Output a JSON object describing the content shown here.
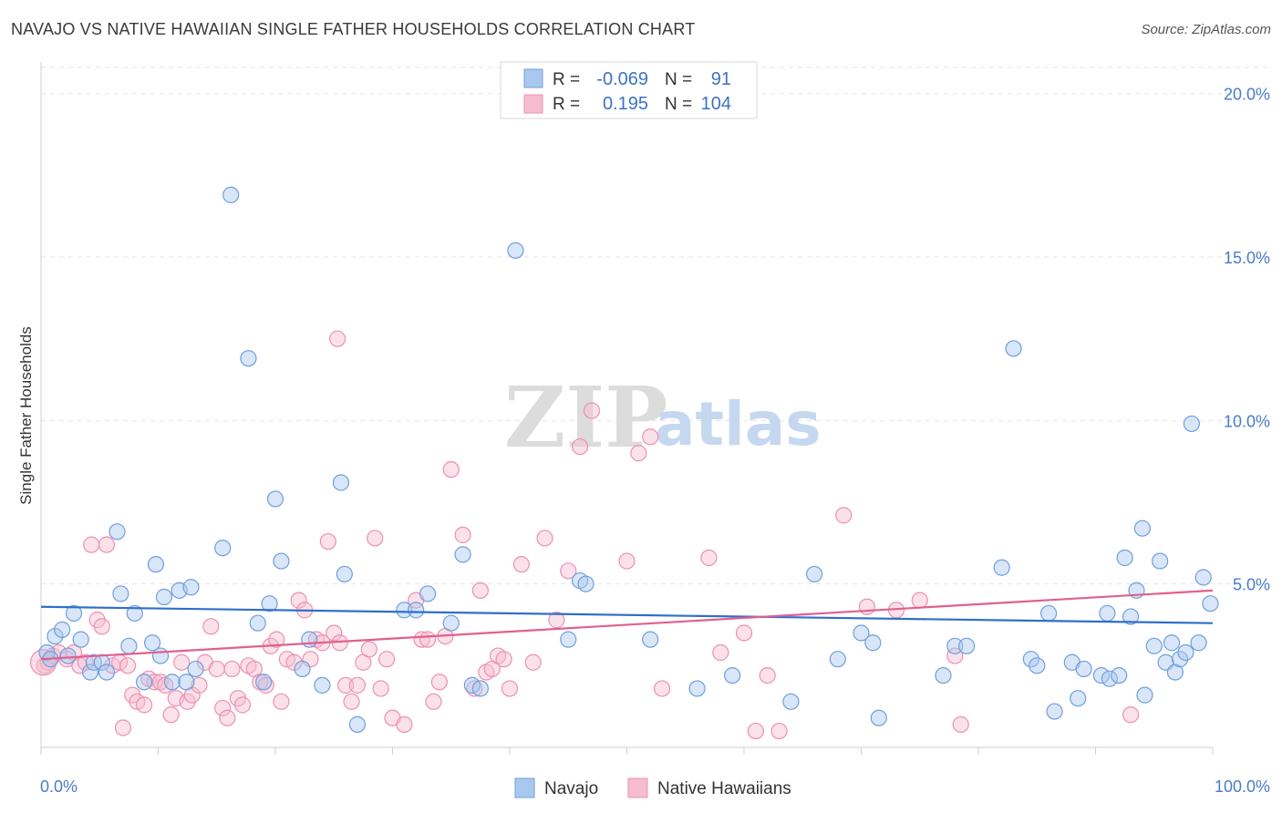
{
  "title": "NAVAJO VS NATIVE HAWAIIAN SINGLE FATHER HOUSEHOLDS CORRELATION CHART",
  "source": "Source: ZipAtlas.com",
  "watermark": {
    "part1": "ZIP",
    "part2": "atlas"
  },
  "legend": {
    "rows": [
      {
        "r_label": "R =",
        "r_value": "-0.069",
        "n_label": "N =",
        "n_value": "91"
      },
      {
        "r_label": "R =",
        "r_value": "0.195",
        "n_label": "N =",
        "n_value": "104"
      }
    ]
  },
  "chart_data": {
    "type": "scatter",
    "title": "NAVAJO VS NATIVE HAWAIIAN SINGLE FATHER HOUSEHOLDS CORRELATION CHART",
    "xlabel": "",
    "ylabel": "Single Father Households",
    "xlim": [
      0,
      100
    ],
    "ylim": [
      0,
      20.8
    ],
    "x_tick_labels": [
      {
        "value": 0,
        "label": "0.0%"
      },
      {
        "value": 100,
        "label": "100.0%"
      }
    ],
    "y_tick_labels": [
      {
        "value": 5,
        "label": "5.0%"
      },
      {
        "value": 10,
        "label": "10.0%"
      },
      {
        "value": 15,
        "label": "15.0%"
      },
      {
        "value": 20,
        "label": "20.0%"
      }
    ],
    "grid": true,
    "legend_position": "top-center",
    "colors": {
      "navajo_fill": "#a9c8f0",
      "navajo_stroke": "#6f9fdc",
      "navajo_line": "#2f6fc9",
      "hawaiian_fill": "#f6bcd0",
      "hawaiian_stroke": "#ee90b0",
      "hawaiian_line": "#e0608e",
      "tick": "#4a7cc8"
    },
    "series": [
      {
        "name": "Navajo",
        "r": -0.069,
        "n": 91,
        "trend": {
          "x": [
            0,
            100
          ],
          "y": [
            4.3,
            3.8
          ]
        },
        "points": [
          [
            0.5,
            2.9
          ],
          [
            0.8,
            2.7
          ],
          [
            1.2,
            3.4
          ],
          [
            1.8,
            3.6
          ],
          [
            2.3,
            2.8
          ],
          [
            2.8,
            4.1
          ],
          [
            3.4,
            3.3
          ],
          [
            4.2,
            2.3
          ],
          [
            4.5,
            2.6
          ],
          [
            5.2,
            2.6
          ],
          [
            5.6,
            2.3
          ],
          [
            6.5,
            6.6
          ],
          [
            6.8,
            4.7
          ],
          [
            7.5,
            3.1
          ],
          [
            8.0,
            4.1
          ],
          [
            8.8,
            2.0
          ],
          [
            9.5,
            3.2
          ],
          [
            9.8,
            5.6
          ],
          [
            10.2,
            2.8
          ],
          [
            10.5,
            4.6
          ],
          [
            11.2,
            2.0
          ],
          [
            11.8,
            4.8
          ],
          [
            12.4,
            2.0
          ],
          [
            12.8,
            4.9
          ],
          [
            13.2,
            2.4
          ],
          [
            15.5,
            6.1
          ],
          [
            16.2,
            16.9
          ],
          [
            17.7,
            11.9
          ],
          [
            18.5,
            3.8
          ],
          [
            19.0,
            2.0
          ],
          [
            19.5,
            4.4
          ],
          [
            20.0,
            7.6
          ],
          [
            20.5,
            5.7
          ],
          [
            22.3,
            2.4
          ],
          [
            22.9,
            3.3
          ],
          [
            24.0,
            1.9
          ],
          [
            25.6,
            8.1
          ],
          [
            25.9,
            5.3
          ],
          [
            27.0,
            0.7
          ],
          [
            31.0,
            4.2
          ],
          [
            32.0,
            4.2
          ],
          [
            33.0,
            4.7
          ],
          [
            35.0,
            3.8
          ],
          [
            36.0,
            5.9
          ],
          [
            36.8,
            1.9
          ],
          [
            37.5,
            1.8
          ],
          [
            40.5,
            15.2
          ],
          [
            45.0,
            3.3
          ],
          [
            46.0,
            5.1
          ],
          [
            46.5,
            5.0
          ],
          [
            52.0,
            3.3
          ],
          [
            56.0,
            1.8
          ],
          [
            59.0,
            2.2
          ],
          [
            64.0,
            1.4
          ],
          [
            66.0,
            5.3
          ],
          [
            68.0,
            2.7
          ],
          [
            70.0,
            3.5
          ],
          [
            71.0,
            3.2
          ],
          [
            71.5,
            0.9
          ],
          [
            77.0,
            2.2
          ],
          [
            78.0,
            3.1
          ],
          [
            79.0,
            3.1
          ],
          [
            82.0,
            5.5
          ],
          [
            83.0,
            12.2
          ],
          [
            84.5,
            2.7
          ],
          [
            85.0,
            2.5
          ],
          [
            86.0,
            4.1
          ],
          [
            86.5,
            1.1
          ],
          [
            88.0,
            2.6
          ],
          [
            88.5,
            1.5
          ],
          [
            89.0,
            2.4
          ],
          [
            90.5,
            2.2
          ],
          [
            91.0,
            4.1
          ],
          [
            91.2,
            2.1
          ],
          [
            92.0,
            2.2
          ],
          [
            92.5,
            5.8
          ],
          [
            93.0,
            4.0
          ],
          [
            93.5,
            4.8
          ],
          [
            94.0,
            6.7
          ],
          [
            94.2,
            1.6
          ],
          [
            95.0,
            3.1
          ],
          [
            95.5,
            5.7
          ],
          [
            96.0,
            2.6
          ],
          [
            96.5,
            3.2
          ],
          [
            96.8,
            2.3
          ],
          [
            97.2,
            2.7
          ],
          [
            97.7,
            2.9
          ],
          [
            98.2,
            9.9
          ],
          [
            98.8,
            3.2
          ],
          [
            99.2,
            5.2
          ],
          [
            99.8,
            4.4
          ]
        ]
      },
      {
        "name": "Native Hawaiians",
        "r": 0.195,
        "n": 104,
        "trend": {
          "x": [
            0,
            100
          ],
          "y": [
            2.7,
            4.8
          ]
        },
        "points": [
          [
            0.3,
            2.5
          ],
          [
            0.6,
            2.6
          ],
          [
            1.0,
            2.8
          ],
          [
            1.5,
            2.9
          ],
          [
            2.2,
            2.7
          ],
          [
            2.8,
            2.9
          ],
          [
            3.3,
            2.5
          ],
          [
            3.8,
            2.6
          ],
          [
            4.3,
            6.2
          ],
          [
            4.8,
            3.9
          ],
          [
            5.2,
            3.7
          ],
          [
            5.6,
            6.2
          ],
          [
            6.1,
            2.5
          ],
          [
            6.7,
            2.6
          ],
          [
            7.0,
            0.6
          ],
          [
            7.4,
            2.5
          ],
          [
            7.8,
            1.6
          ],
          [
            8.2,
            1.4
          ],
          [
            8.8,
            1.3
          ],
          [
            9.2,
            2.1
          ],
          [
            9.7,
            2.0
          ],
          [
            10.2,
            2.0
          ],
          [
            10.6,
            1.9
          ],
          [
            11.1,
            1.0
          ],
          [
            11.5,
            1.5
          ],
          [
            12.0,
            2.6
          ],
          [
            12.5,
            1.4
          ],
          [
            12.9,
            1.6
          ],
          [
            13.5,
            1.9
          ],
          [
            14.0,
            2.6
          ],
          [
            14.5,
            3.7
          ],
          [
            15.0,
            2.4
          ],
          [
            15.5,
            1.2
          ],
          [
            15.9,
            0.9
          ],
          [
            16.3,
            2.4
          ],
          [
            16.8,
            1.5
          ],
          [
            17.2,
            1.3
          ],
          [
            17.7,
            2.5
          ],
          [
            18.2,
            2.4
          ],
          [
            18.7,
            2.0
          ],
          [
            19.2,
            1.9
          ],
          [
            19.6,
            3.1
          ],
          [
            20.1,
            3.3
          ],
          [
            20.5,
            1.4
          ],
          [
            21.0,
            2.7
          ],
          [
            21.6,
            2.6
          ],
          [
            22.0,
            4.5
          ],
          [
            22.5,
            4.2
          ],
          [
            23.0,
            2.7
          ],
          [
            23.5,
            3.3
          ],
          [
            24.0,
            3.2
          ],
          [
            24.5,
            6.3
          ],
          [
            25.0,
            3.5
          ],
          [
            25.5,
            3.2
          ],
          [
            26.0,
            1.9
          ],
          [
            26.5,
            1.4
          ],
          [
            27.0,
            1.9
          ],
          [
            27.5,
            2.6
          ],
          [
            28.0,
            3.0
          ],
          [
            28.5,
            6.4
          ],
          [
            29.0,
            1.8
          ],
          [
            29.5,
            2.7
          ],
          [
            30.0,
            0.9
          ],
          [
            31.0,
            0.7
          ],
          [
            32.0,
            4.5
          ],
          [
            32.5,
            3.3
          ],
          [
            33.0,
            3.3
          ],
          [
            33.5,
            1.4
          ],
          [
            34.0,
            2.0
          ],
          [
            34.5,
            3.4
          ],
          [
            35.0,
            8.5
          ],
          [
            36.0,
            6.5
          ],
          [
            37.0,
            1.8
          ],
          [
            37.5,
            4.8
          ],
          [
            38.0,
            2.3
          ],
          [
            38.5,
            2.4
          ],
          [
            39.0,
            2.8
          ],
          [
            39.5,
            2.7
          ],
          [
            40.0,
            1.8
          ],
          [
            41.0,
            5.6
          ],
          [
            42.0,
            2.6
          ],
          [
            43.0,
            6.4
          ],
          [
            44.0,
            3.9
          ],
          [
            45.0,
            5.4
          ],
          [
            46.0,
            9.2
          ],
          [
            47.0,
            10.3
          ],
          [
            50.0,
            5.7
          ],
          [
            51.0,
            9.0
          ],
          [
            52.0,
            9.5
          ],
          [
            53.0,
            1.8
          ],
          [
            57.0,
            5.8
          ],
          [
            58.0,
            2.9
          ],
          [
            60.0,
            3.5
          ],
          [
            61.0,
            0.5
          ],
          [
            62.0,
            2.2
          ],
          [
            63.0,
            0.5
          ],
          [
            68.5,
            7.1
          ],
          [
            70.5,
            4.3
          ],
          [
            73.0,
            4.2
          ],
          [
            75.0,
            4.5
          ],
          [
            78.0,
            2.8
          ],
          [
            78.5,
            0.7
          ],
          [
            93.0,
            1.0
          ],
          [
            25.3,
            12.5
          ]
        ]
      }
    ]
  },
  "bottom_legend": {
    "items": [
      "Navajo",
      "Native Hawaiians"
    ]
  }
}
